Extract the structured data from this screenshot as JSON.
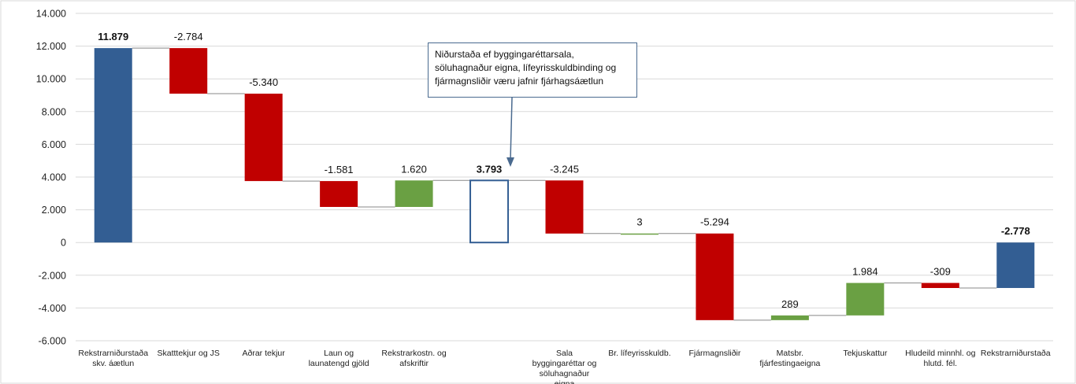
{
  "chart_data": {
    "type": "waterfall",
    "ylim": [
      -6000,
      14000
    ],
    "yticks": [
      "14.000",
      "12.000",
      "10.000",
      "8.000",
      "6.000",
      "4.000",
      "2.000",
      "0",
      "-2.000",
      "-4.000",
      "-6.000"
    ],
    "grid": true,
    "colors": {
      "total": "#335e93",
      "decrease": "#c00000",
      "increase": "#6aa043",
      "outline": "#335e93",
      "connector": "#888888"
    },
    "bars": [
      {
        "category": "Rekstrarniðurstaða skv. áætlun",
        "kind": "total",
        "start": 0,
        "end": 11879,
        "label": "11.879",
        "bold": true
      },
      {
        "category": "Skatttekjur og JS",
        "kind": "decrease",
        "start": 11879,
        "end": 9095,
        "label": "-2.784",
        "bold": false
      },
      {
        "category": "Aðrar tekjur",
        "kind": "decrease",
        "start": 9095,
        "end": 3755,
        "label": "-5.340",
        "bold": false
      },
      {
        "category": "Laun og launatengd gjöld",
        "kind": "decrease",
        "start": 3755,
        "end": 2174,
        "label": "-1.581",
        "bold": false
      },
      {
        "category": "Rekstrarkostn. og afskriftir",
        "kind": "increase",
        "start": 2174,
        "end": 3793,
        "label": "1.620",
        "bold": false
      },
      {
        "category": "",
        "kind": "outline",
        "start": 0,
        "end": 3793,
        "label": "3.793",
        "bold": true
      },
      {
        "category": "Sala byggingaréttar og söluhagnaður eigna",
        "kind": "decrease",
        "start": 3793,
        "end": 548,
        "label": "-3.245",
        "bold": false
      },
      {
        "category": "Br. lífeyrisskuldb.",
        "kind": "increase",
        "start": 548,
        "end": 551,
        "label": "3",
        "bold": false
      },
      {
        "category": "Fjármagnsliðir",
        "kind": "decrease",
        "start": 551,
        "end": -4743,
        "label": "-5.294",
        "bold": false
      },
      {
        "category": "Matsbr. fjárfestingaeigna",
        "kind": "increase",
        "start": -4743,
        "end": -4454,
        "label": "289",
        "bold": false
      },
      {
        "category": "Tekjuskattur",
        "kind": "increase",
        "start": -4454,
        "end": -2470,
        "label": "1.984",
        "bold": false
      },
      {
        "category": "Hludeild minnhl. og hlutd. fél.",
        "kind": "decrease",
        "start": -2470,
        "end": -2779,
        "label": "-309",
        "bold": false
      },
      {
        "category": "Rekstrarniðurstaða",
        "kind": "total",
        "start": 0,
        "end": -2778,
        "label": "-2.778",
        "bold": true
      }
    ],
    "annotation": {
      "text": "Niðurstaða ef byggingaréttarsala, söluhagnaður eigna, lífeyrisskuldbinding og fjármagnsliðir væru jafnir fjárhagsáætlun",
      "points_to": "3.793"
    }
  }
}
